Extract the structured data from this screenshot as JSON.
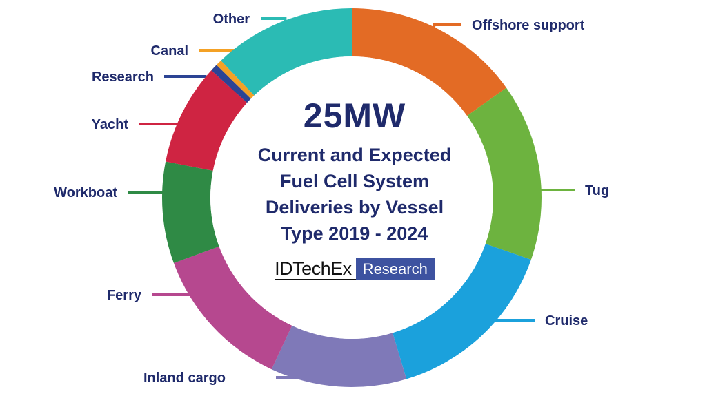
{
  "chart_data": {
    "type": "pie",
    "donut": true,
    "headline": "25MW",
    "title": "Current and Expected Fuel Cell System Deliveries by Vessel Type 2019 - 2024",
    "unit": "share of 25 MW (approx., %)",
    "slices": [
      {
        "label": "Offshore support",
        "value": 14.5,
        "color": "#e36b25"
      },
      {
        "label": "Tug",
        "value": 14.5,
        "color": "#6db33f"
      },
      {
        "label": "Cruise",
        "value": 14.4,
        "color": "#1ba1dc"
      },
      {
        "label": "Inland cargo",
        "value": 11.1,
        "color": "#7f79b8"
      },
      {
        "label": "Ferry",
        "value": 11.9,
        "color": "#b6488f"
      },
      {
        "label": "Workboat",
        "value": 8.3,
        "color": "#2f8a45"
      },
      {
        "label": "Yacht",
        "value": 8.3,
        "color": "#cf2442"
      },
      {
        "label": "Research",
        "value": 0.6,
        "color": "#2c4494"
      },
      {
        "label": "Canal",
        "value": 0.5,
        "color": "#f4a125"
      },
      {
        "label": "Other",
        "value": 11.6,
        "color": "#2bbbb4"
      }
    ],
    "legend": "none (labels with leader lines)"
  },
  "center": {
    "headline": "25MW",
    "subtitle_lines": [
      "Current and Expected",
      "Fuel Cell System",
      "Deliveries by Vessel",
      "Type 2019 - 2024"
    ]
  },
  "logo": {
    "brand": "IDTechEx",
    "tag": "Research",
    "brand_color": "#111111",
    "tag_bg_color": "#3d52a0"
  },
  "colors": {
    "text": "#1f2a6b",
    "background": "#ffffff"
  }
}
